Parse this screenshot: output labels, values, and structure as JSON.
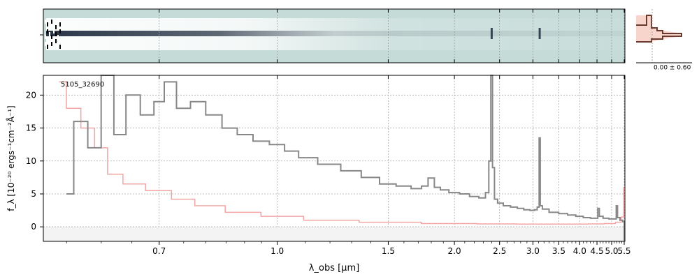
{
  "chart_data": [
    {
      "panel": "spectrum-2d",
      "type": "heatmap",
      "colors": {
        "background": "#c5dbd8",
        "trace": "#1e2a3c"
      }
    },
    {
      "panel": "profile",
      "type": "line",
      "annotation": "0.00 ± 0.60",
      "colors": {
        "profile": "#6b3a2e",
        "fill": "#f7d5cc"
      }
    },
    {
      "panel": "spectrum-1d",
      "type": "line",
      "object_label": "5105_32690",
      "ylabel": "f_λ [10⁻²⁰ ergs⁻¹cm⁻²Å⁻¹]",
      "xlabel": "λ_obs [μm]",
      "x_ticks": [
        "0.7",
        "1.0",
        "1.5",
        "2.0",
        "2.5",
        "3.0",
        "3.5",
        "4.0",
        "4.5",
        "5.0",
        "5.5"
      ],
      "x_tick_values": [
        0.7,
        1.0,
        1.5,
        2.0,
        2.5,
        3.0,
        3.5,
        4.0,
        4.5,
        5.0,
        5.5
      ],
      "y_ticks": [
        "0",
        "5",
        "10",
        "15",
        "20"
      ],
      "y_tick_values": [
        0,
        5,
        10,
        15,
        20
      ],
      "xlim": [
        0.52,
        5.53
      ],
      "ylim": [
        -2.2,
        23
      ],
      "grid": true,
      "series": [
        {
          "role": "flux",
          "color": "#888888",
          "points": [
            [
              0.55,
              5
            ],
            [
              0.57,
              16
            ],
            [
              0.59,
              12
            ],
            [
              0.61,
              24
            ],
            [
              0.63,
              14
            ],
            [
              0.65,
              20
            ],
            [
              0.68,
              17
            ],
            [
              0.7,
              19
            ],
            [
              0.72,
              22
            ],
            [
              0.75,
              18
            ],
            [
              0.78,
              19
            ],
            [
              0.82,
              17
            ],
            [
              0.86,
              15
            ],
            [
              0.9,
              14
            ],
            [
              0.95,
              13
            ],
            [
              1.0,
              12.5
            ],
            [
              1.05,
              11.5
            ],
            [
              1.1,
              10.5
            ],
            [
              1.2,
              9.5
            ],
            [
              1.3,
              8.5
            ],
            [
              1.4,
              7.5
            ],
            [
              1.5,
              6.5
            ],
            [
              1.6,
              6.2
            ],
            [
              1.7,
              5.8
            ],
            [
              1.75,
              6.2
            ],
            [
              1.8,
              7.4
            ],
            [
              1.85,
              6.0
            ],
            [
              1.9,
              5.6
            ],
            [
              2.0,
              5.2
            ],
            [
              2.1,
              5.0
            ],
            [
              2.2,
              4.6
            ],
            [
              2.3,
              4.4
            ],
            [
              2.35,
              5.2
            ],
            [
              2.38,
              10
            ],
            [
              2.4,
              23
            ],
            [
              2.42,
              9
            ],
            [
              2.45,
              4.2
            ],
            [
              2.5,
              3.6
            ],
            [
              2.6,
              3.2
            ],
            [
              2.7,
              3.0
            ],
            [
              2.8,
              2.8
            ],
            [
              2.9,
              2.6
            ],
            [
              3.0,
              2.5
            ],
            [
              3.05,
              2.6
            ],
            [
              3.1,
              3.0
            ],
            [
              3.12,
              13.5
            ],
            [
              3.14,
              3.2
            ],
            [
              3.2,
              2.7
            ],
            [
              3.4,
              2.2
            ],
            [
              3.6,
              2.0
            ],
            [
              3.8,
              1.8
            ],
            [
              4.0,
              1.6
            ],
            [
              4.2,
              1.4
            ],
            [
              4.4,
              1.3
            ],
            [
              4.5,
              1.3
            ],
            [
              4.55,
              2.8
            ],
            [
              4.6,
              1.6
            ],
            [
              4.8,
              1.3
            ],
            [
              5.0,
              1.2
            ],
            [
              5.15,
              1.2
            ],
            [
              5.2,
              3.2
            ],
            [
              5.25,
              1.4
            ],
            [
              5.4,
              1.0
            ],
            [
              5.48,
              0.8
            ],
            [
              5.52,
              -2.0
            ]
          ]
        },
        {
          "role": "error",
          "color": "#f4a6a6",
          "points": [
            [
              0.54,
              22
            ],
            [
              0.56,
              18
            ],
            [
              0.58,
              15
            ],
            [
              0.6,
              12
            ],
            [
              0.62,
              8
            ],
            [
              0.65,
              6.5
            ],
            [
              0.7,
              5.5
            ],
            [
              0.75,
              4.2
            ],
            [
              0.8,
              3.2
            ],
            [
              0.9,
              2.2
            ],
            [
              1.0,
              1.6
            ],
            [
              1.2,
              1.0
            ],
            [
              1.5,
              0.7
            ],
            [
              2.0,
              0.5
            ],
            [
              2.5,
              0.45
            ],
            [
              3.0,
              0.42
            ],
            [
              3.5,
              0.42
            ],
            [
              4.0,
              0.42
            ],
            [
              4.5,
              0.45
            ],
            [
              5.0,
              0.5
            ],
            [
              5.3,
              0.7
            ],
            [
              5.45,
              1.5
            ],
            [
              5.5,
              6.0
            ]
          ]
        }
      ]
    }
  ]
}
